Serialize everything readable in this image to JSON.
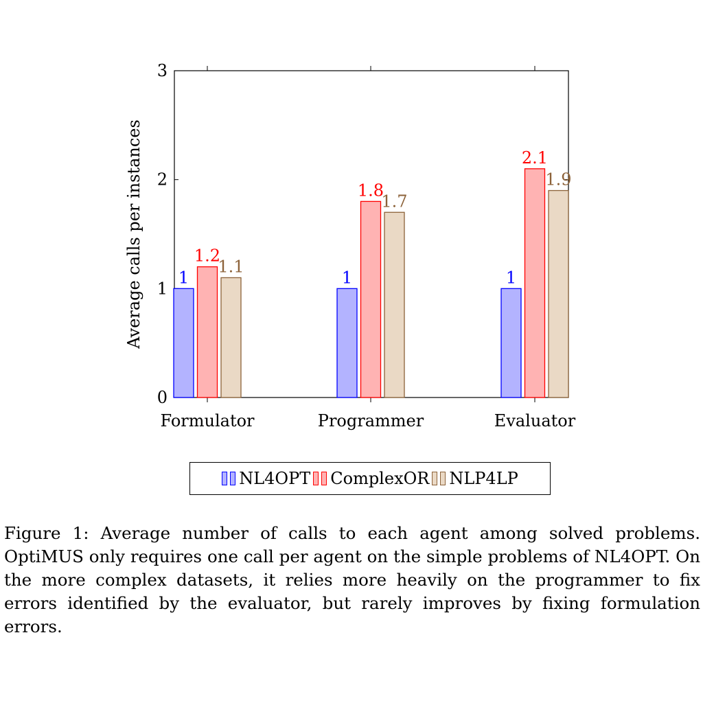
{
  "chart_data": {
    "type": "bar",
    "categories": [
      "Formulator",
      "Programmer",
      "Evaluator"
    ],
    "series": [
      {
        "name": "NL4OPT",
        "values": [
          1,
          1,
          1
        ],
        "labels": [
          "1",
          "1",
          "1"
        ],
        "fill": "#b3b3ff",
        "stroke": "#0000ff",
        "label_color": "#0000ff"
      },
      {
        "name": "ComplexOR",
        "values": [
          1.2,
          1.8,
          2.1
        ],
        "labels": [
          "1.2",
          "1.8",
          "2.1"
        ],
        "fill": "#ffb3b3",
        "stroke": "#ff0000",
        "label_color": "#ff0000"
      },
      {
        "name": "NLP4LP",
        "values": [
          1.1,
          1.7,
          1.9
        ],
        "labels": [
          "1.1",
          "1.7",
          "1.9"
        ],
        "fill": "#ead9c5",
        "stroke": "#8c6239",
        "label_color": "#8c6239"
      }
    ],
    "yticks": [
      "0",
      "1",
      "2",
      "3"
    ],
    "ylabel": "Average calls per instances",
    "xlabel": "",
    "ylim": [
      0,
      3
    ],
    "legend_position": "bottom",
    "grid": false
  },
  "caption": "Figure 1: Average number of calls to each agent among solved problems. OptiMUS only requires one call per agent on the simple problems of NL4OPT. On the more complex datasets, it relies more heavily on the programmer to fix errors identified by the evaluator, but rarely improves by fixing formulation errors."
}
